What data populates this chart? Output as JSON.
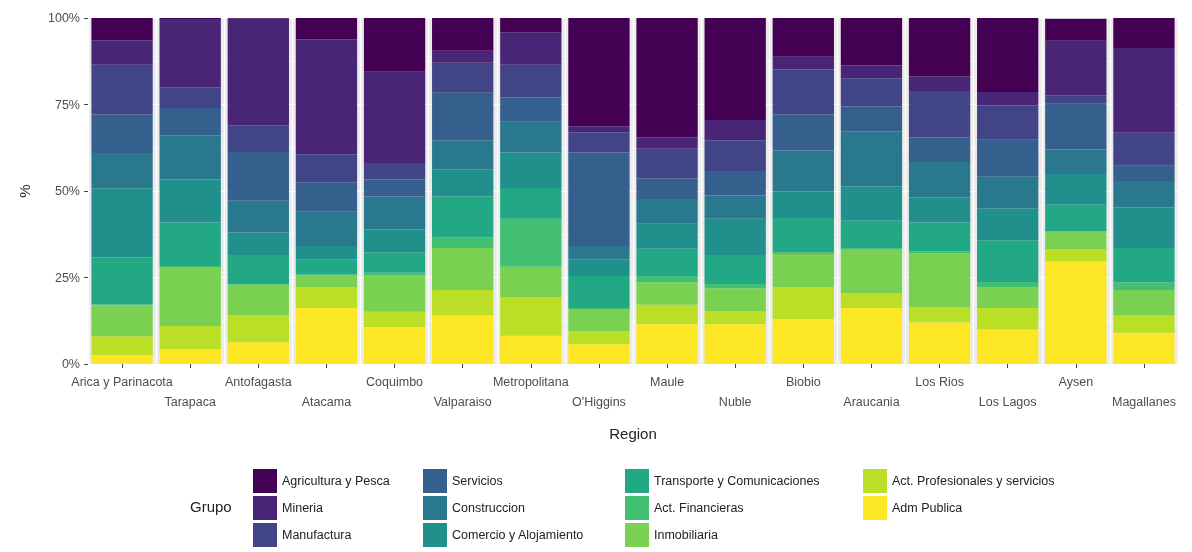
{
  "chart_data": {
    "type": "bar",
    "stacked": true,
    "xlabel": "Region",
    "ylabel": "%",
    "legend_title": "Grupo",
    "legend": "bottom",
    "grid": true,
    "ylim": [
      0,
      100
    ],
    "yticks": [
      {
        "value": 0,
        "label": "0%"
      },
      {
        "value": 25,
        "label": "25%"
      },
      {
        "value": 50,
        "label": "50%"
      },
      {
        "value": 75,
        "label": "75%"
      },
      {
        "value": 100,
        "label": "100%"
      }
    ],
    "categories": [
      "Arica y Parinacota",
      "Tarapaca",
      "Antofagasta",
      "Atacama",
      "Coquimbo",
      "Valparaiso",
      "Metropolitana",
      "O'Higgins",
      "Maule",
      "Nuble",
      "Biobio",
      "Araucania",
      "Los Rios",
      "Los Lagos",
      "Aysen",
      "Magallanes"
    ],
    "series": [
      {
        "name": "Adm Publica",
        "color": "#fde725",
        "values": [
          2.6,
          4.3,
          6.3,
          16.2,
          10.7,
          14.0,
          8.2,
          5.7,
          11.5,
          11.5,
          13.0,
          16.2,
          12.0,
          10.0,
          29.6,
          9.0
        ]
      },
      {
        "name": "Act. Profesionales y servicios",
        "color": "#bbdf27",
        "values": [
          5.4,
          6.7,
          7.7,
          5.9,
          4.4,
          7.4,
          11.0,
          3.8,
          5.6,
          3.7,
          9.1,
          4.2,
          4.5,
          6.2,
          3.5,
          5.0
        ]
      },
      {
        "name": "Inmobiliaria",
        "color": "#7ad151",
        "values": [
          9.0,
          16.8,
          8.9,
          3.6,
          10.5,
          12.1,
          8.9,
          6.2,
          6.5,
          6.7,
          9.7,
          12.6,
          15.6,
          5.9,
          5.2,
          7.4
        ]
      },
      {
        "name": "Act. Financieras",
        "color": "#43bf71",
        "values": [
          0.2,
          0.5,
          0.2,
          0.2,
          0.8,
          3.1,
          13.9,
          0.5,
          1.8,
          1.2,
          0.5,
          0.3,
          0.5,
          1.6,
          null,
          2.2
        ]
      },
      {
        "name": "Transporte y Comunicaciones",
        "color": "#22a884",
        "values": [
          13.6,
          12.6,
          8.4,
          4.4,
          5.9,
          11.8,
          8.9,
          9.2,
          7.9,
          8.4,
          9.9,
          8.1,
          8.3,
          12.1,
          7.7,
          9.9
        ]
      },
      {
        "name": "Comercio y Alojamiento",
        "color": "#21908c",
        "values": [
          20.0,
          12.4,
          6.5,
          3.8,
          6.6,
          7.9,
          10.2,
          4.9,
          7.2,
          10.5,
          7.7,
          9.9,
          7.3,
          9.2,
          8.9,
          11.7
        ]
      },
      {
        "name": "Construccion",
        "color": "#2a788e",
        "values": [
          10.2,
          12.8,
          9.2,
          9.9,
          9.5,
          8.4,
          8.9,
          3.8,
          7.2,
          6.7,
          11.8,
          16.0,
          10.2,
          9.1,
          7.1,
          7.7
        ]
      },
      {
        "name": "Servicios",
        "color": "#35608d",
        "values": [
          11.1,
          7.9,
          14.1,
          8.5,
          4.9,
          13.7,
          7.0,
          27.0,
          5.9,
          7.1,
          10.5,
          7.1,
          7.1,
          10.7,
          13.2,
          4.4
        ]
      },
      {
        "name": "Manufactura",
        "color": "#414487",
        "values": [
          14.4,
          6.0,
          7.7,
          8.1,
          4.8,
          8.7,
          9.5,
          5.9,
          8.6,
          8.9,
          12.9,
          8.2,
          13.4,
          9.9,
          2.5,
          9.5
        ]
      },
      {
        "name": "Mineria",
        "color": "#482576",
        "values": [
          7.0,
          19.7,
          30.8,
          33.2,
          26.4,
          3.4,
          9.4,
          1.7,
          3.3,
          5.8,
          3.7,
          3.7,
          4.2,
          3.9,
          15.7,
          24.5
        ]
      },
      {
        "name": "Agricultura y Pesca",
        "color": "#440154",
        "values": [
          6.5,
          0.3,
          0.2,
          6.2,
          15.5,
          9.5,
          4.1,
          31.3,
          34.5,
          29.5,
          11.2,
          13.7,
          16.9,
          21.4,
          6.4,
          8.7
        ]
      }
    ]
  }
}
